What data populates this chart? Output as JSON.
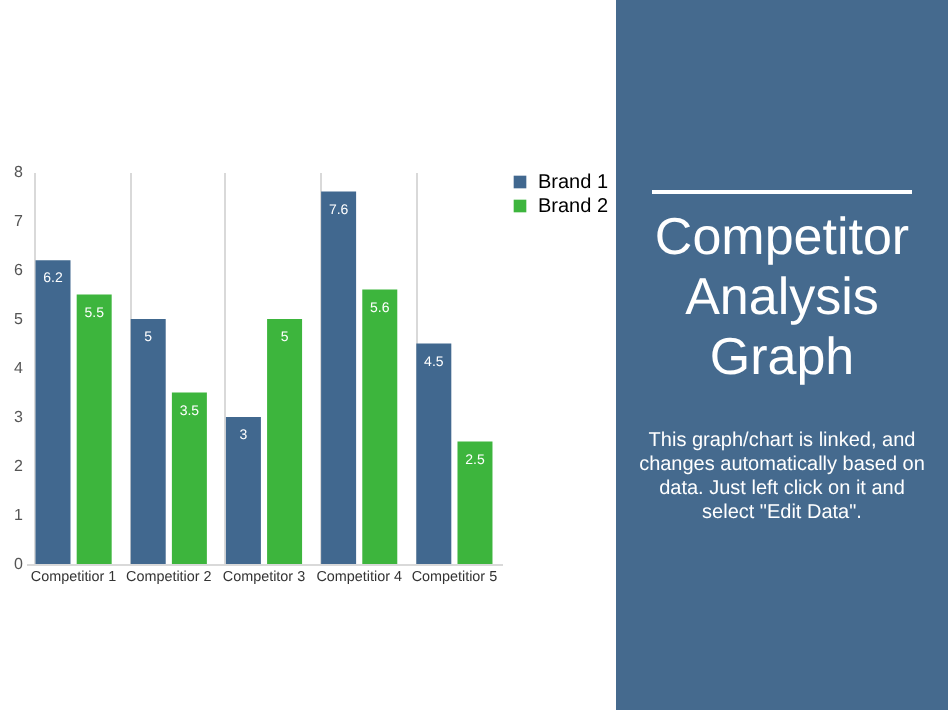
{
  "chart_data": {
    "type": "bar",
    "title": "Competitor Analysis Graph",
    "annotations": [
      "This graph/chart is linked, and changes automatically based on data. Just left click on it and select \"Edit Data\"."
    ],
    "categories": [
      "Competitior 1",
      "Competitior 2",
      "Competitor 3",
      "Competitior 4",
      "Competitior 5"
    ],
    "series": [
      {
        "name": "Brand 1",
        "color": "#41688f",
        "values": [
          6.2,
          5,
          3,
          7.6,
          4.5
        ]
      },
      {
        "name": "Brand 2",
        "color": "#3db53d",
        "values": [
          5.5,
          3.5,
          5,
          5.6,
          2.5
        ]
      }
    ],
    "ylim": [
      0,
      8
    ],
    "yticks": [
      0,
      1,
      2,
      3,
      4,
      5,
      6,
      7,
      8
    ],
    "grid": "x",
    "legend": "right",
    "data_labels": true
  }
}
